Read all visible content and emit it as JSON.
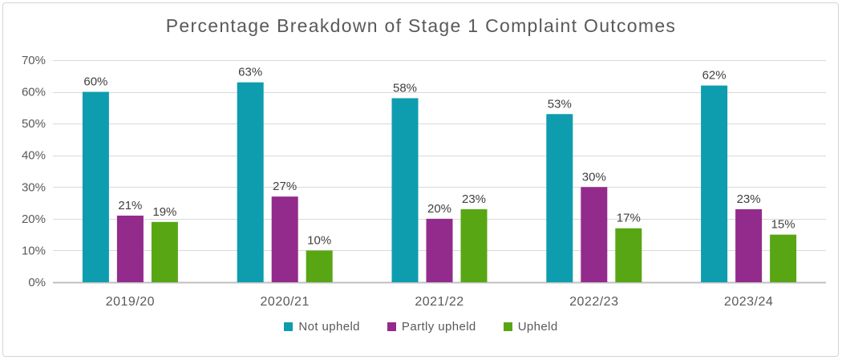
{
  "chart_data": {
    "type": "bar",
    "title": "Percentage Breakdown of Stage 1 Complaint Outcomes",
    "categories": [
      "2019/20",
      "2020/21",
      "2021/22",
      "2022/23",
      "2023/24"
    ],
    "series": [
      {
        "name": "Not upheld",
        "color": "#0d9dae",
        "values": [
          60,
          63,
          58,
          53,
          62
        ]
      },
      {
        "name": "Partly upheld",
        "color": "#932b8d",
        "values": [
          21,
          27,
          20,
          30,
          23
        ]
      },
      {
        "name": "Upheld",
        "color": "#58a614",
        "values": [
          19,
          10,
          23,
          17,
          15
        ]
      }
    ],
    "xlabel": "",
    "ylabel": "",
    "ylim": [
      0,
      70
    ],
    "ytick_step": 10,
    "ytick_labels": [
      "0%",
      "10%",
      "20%",
      "30%",
      "40%",
      "50%",
      "60%",
      "70%"
    ],
    "data_label_suffix": "%",
    "grid": "horizontal",
    "legend_position": "bottom",
    "colors": {
      "grid_line": "#d9d9d9",
      "axis_line": "#bfbfbf",
      "axis_text": "#595959",
      "category_text": "#595959",
      "data_label_text": "#404040",
      "title_text": "#595959",
      "card_border": "#d6d4d4",
      "background": "#ffffff"
    }
  }
}
